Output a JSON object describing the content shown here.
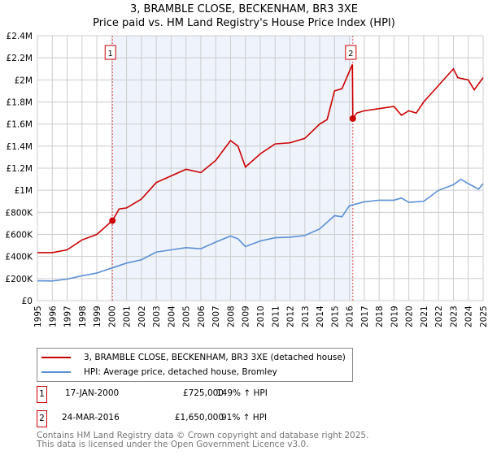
{
  "chart_data": {
    "type": "line",
    "title": "3, BRAMBLE CLOSE, BECKENHAM, BR3 3XE",
    "subtitle": "Price paid vs. HM Land Registry's House Price Index (HPI)",
    "xlim": [
      1995,
      2025
    ],
    "ylim": [
      0,
      2400000
    ],
    "x_ticks": [
      "1995",
      "1996",
      "1997",
      "1998",
      "1999",
      "2000",
      "2001",
      "2002",
      "2003",
      "2004",
      "2005",
      "2006",
      "2007",
      "2008",
      "2009",
      "2010",
      "2011",
      "2012",
      "2013",
      "2014",
      "2015",
      "2016",
      "2017",
      "2018",
      "2019",
      "2020",
      "2021",
      "2022",
      "2023",
      "2024",
      "2025"
    ],
    "y_ticks": [
      {
        "v": 0,
        "l": "£0"
      },
      {
        "v": 200000,
        "l": "£200K"
      },
      {
        "v": 400000,
        "l": "£400K"
      },
      {
        "v": 600000,
        "l": "£600K"
      },
      {
        "v": 800000,
        "l": "£800K"
      },
      {
        "v": 1000000,
        "l": "£1M"
      },
      {
        "v": 1200000,
        "l": "£1.2M"
      },
      {
        "v": 1400000,
        "l": "£1.4M"
      },
      {
        "v": 1600000,
        "l": "£1.6M"
      },
      {
        "v": 1800000,
        "l": "£1.8M"
      },
      {
        "v": 2000000,
        "l": "£2M"
      },
      {
        "v": 2200000,
        "l": "£2.2M"
      },
      {
        "v": 2400000,
        "l": "£2.4M"
      }
    ],
    "grid": true,
    "colors": {
      "property": "#cc0000",
      "hpi": "#5b8fd6",
      "shade": "#eef3fc"
    },
    "series": [
      {
        "name": "3, BRAMBLE CLOSE, BECKENHAM, BR3 3XE (detached house)",
        "x": [
          1995,
          1996,
          1997,
          1998,
          1999,
          2000.05,
          2000.5,
          2001,
          2002,
          2003,
          2004,
          2005,
          2006,
          2007,
          2008,
          2008.5,
          2009,
          2010,
          2011,
          2012,
          2013,
          2014,
          2014.5,
          2015,
          2015.5,
          2016.2,
          2016.23,
          2016.5,
          2017,
          2018,
          2019,
          2019.5,
          2020,
          2020.5,
          2021,
          2022,
          2023,
          2023.3,
          2024,
          2024.4,
          2025
        ],
        "values": [
          435000,
          435000,
          460000,
          550000,
          600000,
          725000,
          830000,
          840000,
          920000,
          1070000,
          1130000,
          1190000,
          1160000,
          1270000,
          1450000,
          1400000,
          1210000,
          1330000,
          1420000,
          1430000,
          1470000,
          1600000,
          1640000,
          1900000,
          1920000,
          2140000,
          1650000,
          1700000,
          1720000,
          1740000,
          1760000,
          1680000,
          1720000,
          1700000,
          1800000,
          1950000,
          2100000,
          2020000,
          2000000,
          1910000,
          2020000
        ]
      },
      {
        "name": "HPI: Average price, detached house, Bromley",
        "x": [
          1995,
          1996,
          1997,
          1998,
          1999,
          2000,
          2001,
          2002,
          2003,
          2004,
          2005,
          2006,
          2007,
          2008,
          2008.5,
          2009,
          2010,
          2011,
          2012,
          2013,
          2014,
          2015,
          2015.5,
          2016,
          2017,
          2018,
          2019,
          2019.5,
          2020,
          2021,
          2021.5,
          2022,
          2023,
          2023.5,
          2024,
          2024.7,
          2025
        ],
        "values": [
          180000,
          178000,
          195000,
          225000,
          250000,
          295000,
          340000,
          370000,
          440000,
          460000,
          480000,
          470000,
          530000,
          585000,
          560000,
          490000,
          540000,
          570000,
          575000,
          590000,
          650000,
          770000,
          760000,
          860000,
          895000,
          910000,
          910000,
          930000,
          890000,
          900000,
          950000,
          1000000,
          1050000,
          1100000,
          1060000,
          1010000,
          1060000
        ]
      }
    ],
    "sales": [
      {
        "label": "1",
        "x": 2000.05,
        "value": 725000
      },
      {
        "label": "2",
        "x": 2016.23,
        "value": 1650000
      }
    ]
  },
  "table": [
    {
      "num": "1",
      "date": "17-JAN-2000",
      "price": "£725,000",
      "hpi": "149% ↑ HPI"
    },
    {
      "num": "2",
      "date": "24-MAR-2016",
      "price": "£1,650,000",
      "hpi": "91% ↑ HPI"
    }
  ],
  "footer": {
    "line1": "Contains HM Land Registry data © Crown copyright and database right 2025.",
    "line2": "This data is licensed under the Open Government Licence v3.0."
  }
}
